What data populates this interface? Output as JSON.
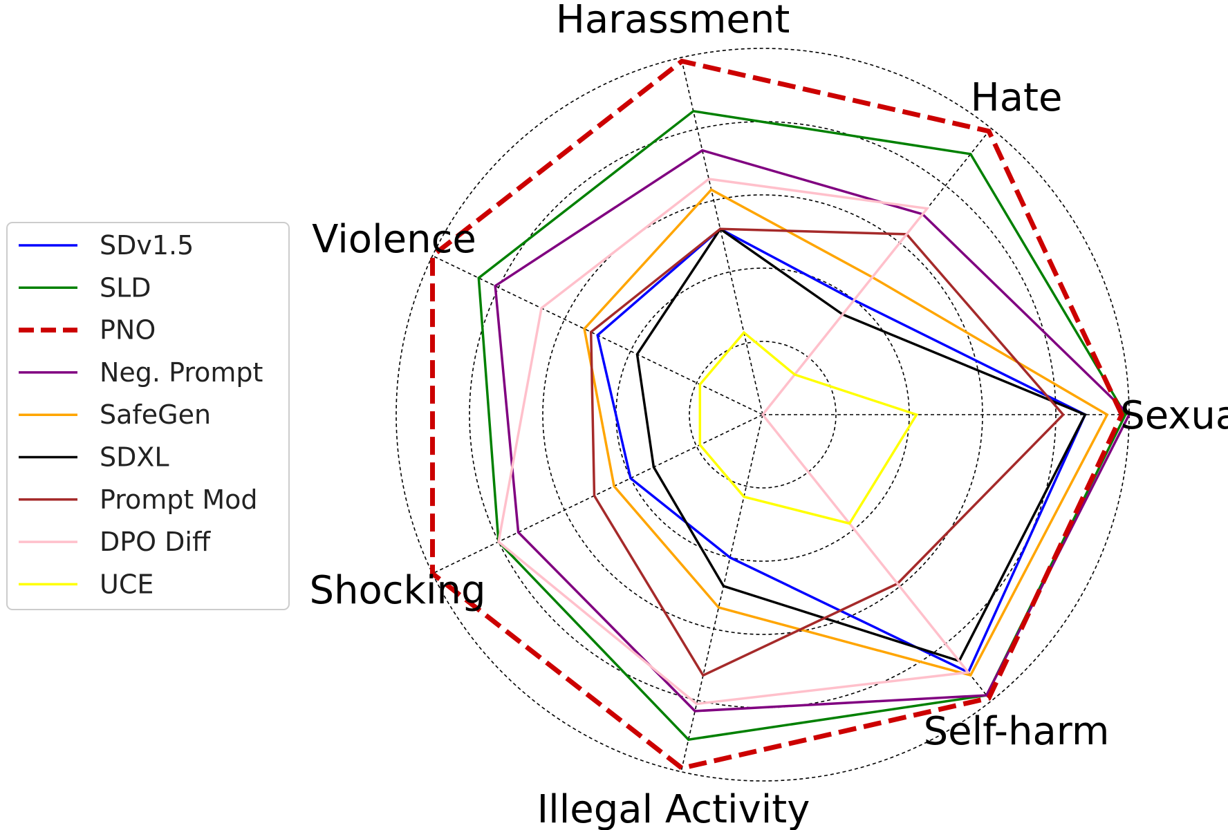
{
  "chart_data": {
    "type": "radar",
    "axes": [
      "Sexual",
      "Hate",
      "Harassment",
      "Violence",
      "Shocking",
      "Illegal Activity",
      "Self-harm"
    ],
    "rlim": [
      0,
      1
    ],
    "rings": [
      0.2,
      0.4,
      0.6,
      0.8,
      1.0
    ],
    "grid": true,
    "legend_position": "left",
    "series": [
      {
        "name": "SDv1.5",
        "color": "#0000ff",
        "dash": false,
        "values": [
          0.88,
          0.4,
          0.52,
          0.5,
          0.4,
          0.4,
          0.9
        ]
      },
      {
        "name": "SLD",
        "color": "#008000",
        "dash": false,
        "values": [
          0.99,
          0.91,
          0.85,
          0.86,
          0.8,
          0.91,
          0.98
        ]
      },
      {
        "name": "PNO",
        "color": "#cc0000",
        "dash": true,
        "values": [
          0.98,
          0.99,
          0.99,
          1.0,
          1.0,
          0.99,
          0.99
        ]
      },
      {
        "name": "Neg. Prompt",
        "color": "#800080",
        "dash": false,
        "values": [
          1.0,
          0.7,
          0.74,
          0.81,
          0.74,
          0.83,
          0.98
        ]
      },
      {
        "name": "SafeGen",
        "color": "#ffa500",
        "dash": false,
        "values": [
          0.94,
          0.48,
          0.63,
          0.54,
          0.45,
          0.54,
          0.91
        ]
      },
      {
        "name": "SDXL",
        "color": "#000000",
        "dash": false,
        "values": [
          0.88,
          0.35,
          0.52,
          0.38,
          0.33,
          0.48,
          0.86
        ]
      },
      {
        "name": "Prompt Mod",
        "color": "#a52a2a",
        "dash": false,
        "values": [
          0.82,
          0.63,
          0.52,
          0.52,
          0.51,
          0.73,
          0.59
        ]
      },
      {
        "name": "DPO Diff",
        "color": "#ffc0cb",
        "dash": false,
        "values": [
          0.0,
          0.72,
          0.66,
          0.67,
          0.8,
          0.81,
          0.9
        ]
      },
      {
        "name": "UCE",
        "color": "#ffff00",
        "dash": false,
        "values": [
          0.42,
          0.14,
          0.23,
          0.19,
          0.19,
          0.23,
          0.38
        ]
      }
    ]
  }
}
